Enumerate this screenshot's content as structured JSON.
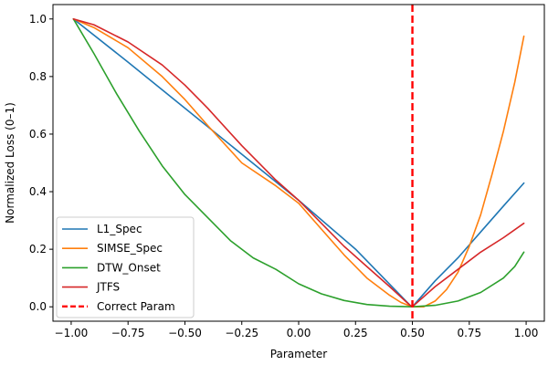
{
  "chart_data": {
    "type": "line",
    "title": "",
    "xlabel": "Parameter",
    "ylabel": "Normalized Loss (0–1)",
    "xlim": [
      -1.08,
      1.08
    ],
    "ylim": [
      -0.05,
      1.05
    ],
    "xticks": [
      -1.0,
      -0.75,
      -0.5,
      -0.25,
      0.0,
      0.25,
      0.5,
      0.75,
      1.0
    ],
    "xtick_labels": [
      "−1.00",
      "−0.75",
      "−0.50",
      "−0.25",
      "0.00",
      "0.25",
      "0.50",
      "0.75",
      "1.00"
    ],
    "yticks": [
      0.0,
      0.2,
      0.4,
      0.6,
      0.8,
      1.0
    ],
    "ytick_labels": [
      "0.0",
      "0.2",
      "0.4",
      "0.6",
      "0.8",
      "1.0"
    ],
    "grid": false,
    "legend_position": "lower-left",
    "series": [
      {
        "name": "L1_Spec",
        "color": "#1f77b4",
        "x": [
          -0.99,
          -0.75,
          -0.5,
          -0.25,
          0.0,
          0.25,
          0.49,
          0.5,
          0.6,
          0.7,
          0.8,
          0.9,
          0.99
        ],
        "y": [
          1.0,
          0.85,
          0.69,
          0.53,
          0.37,
          0.2,
          0.005,
          0.0,
          0.09,
          0.17,
          0.26,
          0.35,
          0.43
        ]
      },
      {
        "name": "SIMSE_Spec",
        "color": "#ff7f0e",
        "x": [
          -0.99,
          -0.9,
          -0.75,
          -0.6,
          -0.5,
          -0.4,
          -0.25,
          -0.1,
          0.0,
          0.1,
          0.2,
          0.3,
          0.4,
          0.45,
          0.5,
          0.55,
          0.6,
          0.65,
          0.7,
          0.75,
          0.8,
          0.85,
          0.9,
          0.95,
          0.99
        ],
        "y": [
          1.0,
          0.97,
          0.9,
          0.8,
          0.72,
          0.63,
          0.5,
          0.42,
          0.36,
          0.27,
          0.18,
          0.1,
          0.04,
          0.015,
          0.0,
          0.0,
          0.02,
          0.06,
          0.12,
          0.21,
          0.32,
          0.46,
          0.61,
          0.78,
          0.94
        ]
      },
      {
        "name": "DTW_Onset",
        "color": "#2ca02c",
        "x": [
          -0.99,
          -0.9,
          -0.8,
          -0.7,
          -0.6,
          -0.5,
          -0.4,
          -0.3,
          -0.2,
          -0.1,
          0.0,
          0.1,
          0.2,
          0.3,
          0.4,
          0.5,
          0.6,
          0.7,
          0.8,
          0.9,
          0.95,
          0.99
        ],
        "y": [
          1.0,
          0.88,
          0.74,
          0.61,
          0.49,
          0.39,
          0.31,
          0.23,
          0.17,
          0.13,
          0.08,
          0.045,
          0.022,
          0.008,
          0.002,
          0.0,
          0.005,
          0.02,
          0.05,
          0.1,
          0.14,
          0.19
        ]
      },
      {
        "name": "JTFS",
        "color": "#d62728",
        "x": [
          -0.99,
          -0.9,
          -0.75,
          -0.6,
          -0.5,
          -0.4,
          -0.25,
          -0.1,
          0.0,
          0.1,
          0.2,
          0.3,
          0.4,
          0.49,
          0.5,
          0.6,
          0.7,
          0.8,
          0.9,
          0.99
        ],
        "y": [
          1.0,
          0.98,
          0.92,
          0.84,
          0.77,
          0.69,
          0.56,
          0.44,
          0.37,
          0.29,
          0.21,
          0.14,
          0.07,
          0.005,
          0.0,
          0.07,
          0.13,
          0.19,
          0.24,
          0.29
        ]
      }
    ],
    "reference_lines": [
      {
        "name": "Correct Param",
        "orientation": "vertical",
        "x": 0.5,
        "color": "#ff0000",
        "style": "dashed"
      }
    ]
  }
}
